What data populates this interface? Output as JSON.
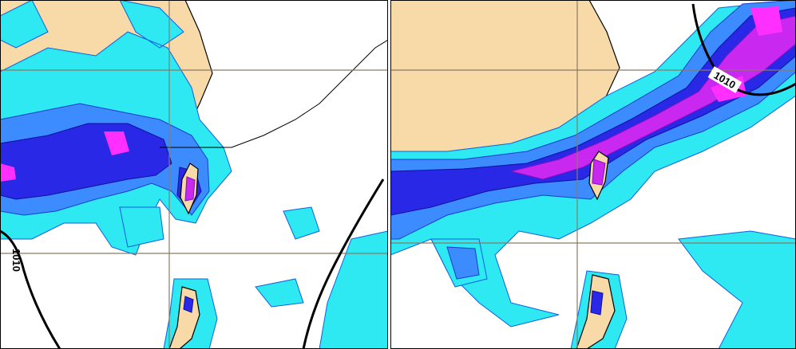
{
  "panels": [
    {
      "isobar_label": "1010"
    },
    {
      "isobar_label": "1010"
    }
  ]
}
